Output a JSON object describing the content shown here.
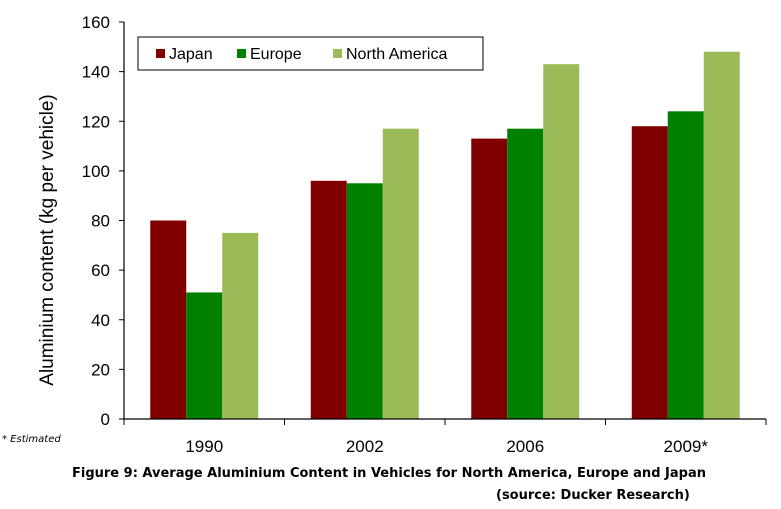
{
  "chart_data": {
    "type": "bar",
    "ylabel": "Aluminium content (kg per vehicle)",
    "xlabel": "",
    "ylim": [
      0,
      160
    ],
    "yticks": [
      0,
      20,
      40,
      60,
      80,
      100,
      120,
      140,
      160
    ],
    "categories": [
      "1990",
      "2002",
      "2006",
      "2009*"
    ],
    "series": [
      {
        "name": "Japan",
        "color": "#800000",
        "values": [
          80,
          96,
          113,
          118
        ]
      },
      {
        "name": "Europe",
        "color": "#008000",
        "values": [
          51,
          95,
          117,
          124
        ]
      },
      {
        "name": "North America",
        "color": "#9BBB59",
        "values": [
          75,
          117,
          143,
          148
        ]
      }
    ],
    "legend_position": "top-left",
    "grid": false
  },
  "footnote": "* Estimated",
  "caption": "Figure 9: Average Aluminium Content in Vehicles for North America, Europe and Japan",
  "source": "(source: Ducker Research)"
}
